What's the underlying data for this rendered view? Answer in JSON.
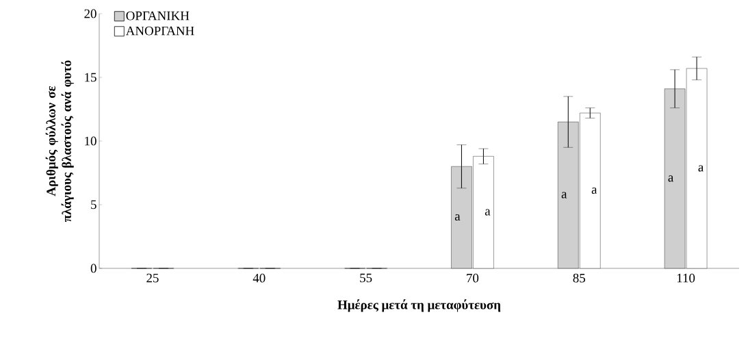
{
  "chart_data": {
    "type": "bar",
    "xlabel": "Ημέρες μετά τη μεταφύτευση",
    "ylabel": "Αριθμός φύλλων σε πλάγιους βλαστούς ανά φυτό",
    "categories": [
      "25",
      "40",
      "55",
      "70",
      "85",
      "110"
    ],
    "series": [
      {
        "name": "ΟΡΓΑΝΙΚΗ",
        "color": "#cfcfcf",
        "values": [
          0,
          0,
          0,
          8.0,
          11.5,
          14.1
        ],
        "errors": [
          null,
          null,
          null,
          1.7,
          2.0,
          1.5
        ],
        "value_labels": [
          null,
          null,
          null,
          "a",
          "a",
          "a"
        ]
      },
      {
        "name": "ΑΝΟΡΓΑΝΗ",
        "color": "#ffffff",
        "values": [
          0,
          0,
          0,
          8.8,
          12.2,
          15.7
        ],
        "errors": [
          null,
          null,
          null,
          0.6,
          0.4,
          0.9
        ],
        "value_labels": [
          null,
          null,
          null,
          "a",
          "a",
          "a"
        ]
      }
    ],
    "ylim": [
      0,
      20
    ],
    "yticks": [
      0,
      5,
      10,
      15,
      20
    ],
    "legend": "top left",
    "grid": false
  }
}
